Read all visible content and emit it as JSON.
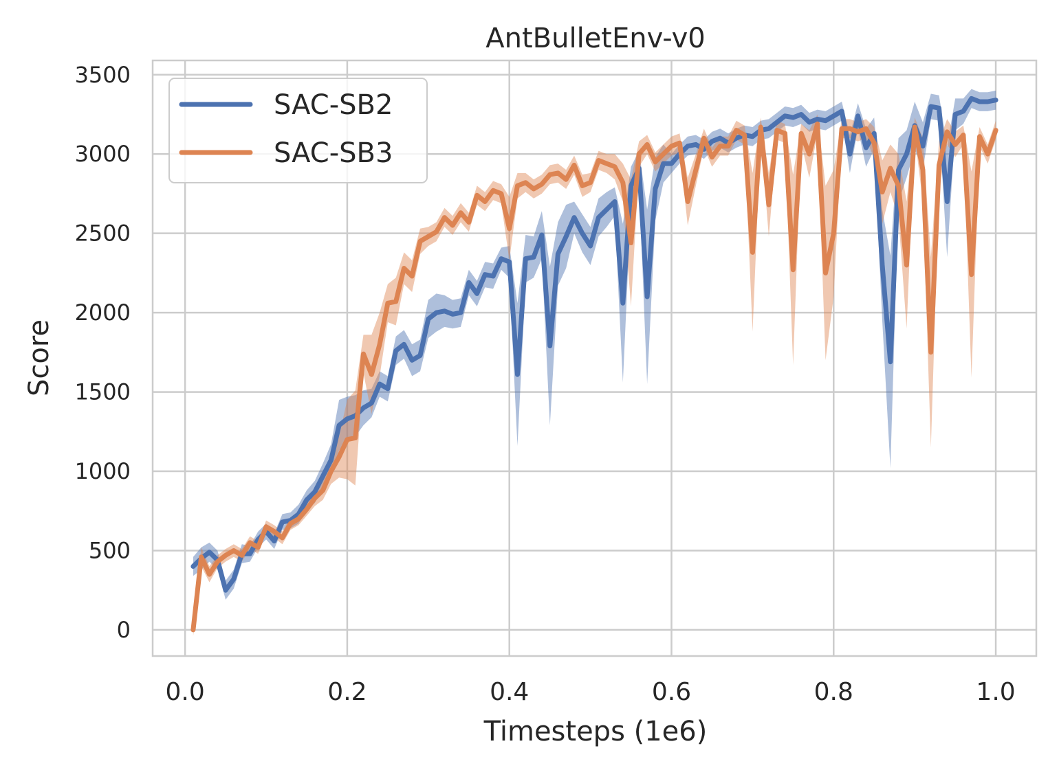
{
  "chart_data": {
    "type": "line",
    "title": "AntBulletEnv-v0",
    "xlabel": "Timesteps (1e6)",
    "ylabel": "Score",
    "xlim": [
      -0.04,
      1.05
    ],
    "ylim": [
      -165,
      3590
    ],
    "xticks": [
      0.0,
      0.2,
      0.4,
      0.6,
      0.8,
      1.0
    ],
    "xtick_labels": [
      "0.0",
      "0.2",
      "0.4",
      "0.6",
      "0.8",
      "1.0"
    ],
    "yticks": [
      0,
      500,
      1000,
      1500,
      2000,
      2500,
      3000,
      3500
    ],
    "ytick_labels": [
      "0",
      "500",
      "1000",
      "1500",
      "2000",
      "2500",
      "3000",
      "3500"
    ],
    "grid": true,
    "legend_position": "top-left",
    "x": [
      0.01,
      0.02,
      0.03,
      0.04,
      0.05,
      0.06,
      0.07,
      0.08,
      0.09,
      0.1,
      0.11,
      0.12,
      0.13,
      0.14,
      0.15,
      0.16,
      0.17,
      0.18,
      0.19,
      0.2,
      0.21,
      0.22,
      0.23,
      0.24,
      0.25,
      0.26,
      0.27,
      0.28,
      0.29,
      0.3,
      0.31,
      0.32,
      0.33,
      0.34,
      0.35,
      0.36,
      0.37,
      0.38,
      0.39,
      0.4,
      0.41,
      0.42,
      0.43,
      0.44,
      0.45,
      0.46,
      0.47,
      0.48,
      0.49,
      0.5,
      0.51,
      0.52,
      0.53,
      0.54,
      0.55,
      0.56,
      0.57,
      0.58,
      0.59,
      0.6,
      0.61,
      0.62,
      0.63,
      0.64,
      0.65,
      0.66,
      0.67,
      0.68,
      0.69,
      0.7,
      0.71,
      0.72,
      0.73,
      0.74,
      0.75,
      0.76,
      0.77,
      0.78,
      0.79,
      0.8,
      0.81,
      0.82,
      0.83,
      0.84,
      0.85,
      0.86,
      0.87,
      0.88,
      0.89,
      0.9,
      0.91,
      0.92,
      0.93,
      0.94,
      0.95,
      0.96,
      0.97,
      0.98,
      0.99,
      1.0
    ],
    "series": [
      {
        "name": "SAC-SB2",
        "color": "#4c72b0",
        "values": [
          400,
          450,
          490,
          440,
          250,
          320,
          480,
          480,
          570,
          620,
          560,
          680,
          690,
          730,
          820,
          870,
          970,
          1070,
          1290,
          1330,
          1350,
          1400,
          1430,
          1550,
          1520,
          1760,
          1800,
          1700,
          1730,
          1960,
          2000,
          2010,
          1990,
          2000,
          2190,
          2120,
          2240,
          2230,
          2340,
          2320,
          1610,
          2340,
          2350,
          2490,
          1790,
          2370,
          2480,
          2600,
          2500,
          2420,
          2600,
          2650,
          2700,
          2060,
          2800,
          2910,
          2100,
          2780,
          2940,
          2940,
          3000,
          3050,
          3060,
          3030,
          3080,
          3100,
          3070,
          3100,
          3120,
          3110,
          3150,
          3160,
          3200,
          3240,
          3230,
          3250,
          3200,
          3220,
          3210,
          3240,
          3270,
          3000,
          3240,
          3040,
          3130,
          2300,
          1690,
          2900,
          3000,
          3180,
          3050,
          3300,
          3290,
          2700,
          3250,
          3270,
          3350,
          3330,
          3330,
          3340
        ],
        "band": [
          60,
          70,
          60,
          60,
          60,
          60,
          60,
          50,
          50,
          50,
          50,
          50,
          50,
          60,
          60,
          70,
          80,
          100,
          160,
          140,
          130,
          110,
          90,
          80,
          80,
          90,
          90,
          100,
          100,
          120,
          120,
          100,
          90,
          90,
          80,
          80,
          80,
          80,
          70,
          100,
          450,
          150,
          130,
          150,
          500,
          200,
          200,
          100,
          120,
          120,
          120,
          110,
          90,
          500,
          120,
          110,
          550,
          200,
          120,
          60,
          60,
          60,
          60,
          60,
          60,
          60,
          60,
          60,
          60,
          60,
          60,
          60,
          60,
          60,
          60,
          60,
          60,
          60,
          60,
          60,
          60,
          120,
          80,
          120,
          100,
          350,
          670,
          200,
          150,
          150,
          150,
          80,
          80,
          350,
          100,
          80,
          60,
          60,
          60,
          60
        ]
      },
      {
        "name": "SAC-SB3",
        "color": "#dd8452",
        "values": [
          0,
          460,
          350,
          430,
          470,
          500,
          470,
          550,
          520,
          650,
          620,
          580,
          670,
          700,
          760,
          830,
          880,
          1000,
          1090,
          1200,
          1210,
          1740,
          1610,
          1800,
          2060,
          2070,
          2280,
          2230,
          2450,
          2480,
          2510,
          2600,
          2550,
          2630,
          2570,
          2740,
          2700,
          2770,
          2750,
          2530,
          2800,
          2820,
          2780,
          2810,
          2870,
          2880,
          2840,
          2930,
          2800,
          2820,
          2960,
          2940,
          2920,
          2820,
          2440,
          3000,
          3060,
          2950,
          3000,
          3050,
          3070,
          2700,
          2900,
          3100,
          2980,
          3050,
          3050,
          3150,
          3120,
          2380,
          3170,
          2680,
          3150,
          3130,
          2270,
          3130,
          3000,
          3190,
          2250,
          2500,
          3160,
          3160,
          3140,
          3160,
          3070,
          2760,
          2910,
          2800,
          2300,
          3170,
          2900,
          1750,
          2930,
          3140,
          3060,
          3120,
          2240,
          3110,
          3000,
          3150
        ],
        "band": [
          40,
          60,
          50,
          40,
          40,
          40,
          40,
          40,
          40,
          40,
          40,
          40,
          40,
          40,
          40,
          50,
          60,
          80,
          130,
          250,
          300,
          120,
          250,
          200,
          120,
          150,
          100,
          100,
          80,
          60,
          60,
          60,
          60,
          60,
          60,
          60,
          60,
          60,
          60,
          200,
          80,
          60,
          60,
          60,
          60,
          60,
          60,
          60,
          70,
          60,
          60,
          60,
          80,
          120,
          400,
          80,
          60,
          60,
          60,
          60,
          60,
          150,
          100,
          60,
          60,
          60,
          60,
          60,
          60,
          500,
          60,
          200,
          60,
          60,
          600,
          60,
          150,
          60,
          550,
          400,
          60,
          60,
          60,
          60,
          100,
          200,
          150,
          200,
          400,
          60,
          200,
          600,
          150,
          80,
          80,
          60,
          650,
          60,
          60,
          60
        ]
      }
    ]
  }
}
